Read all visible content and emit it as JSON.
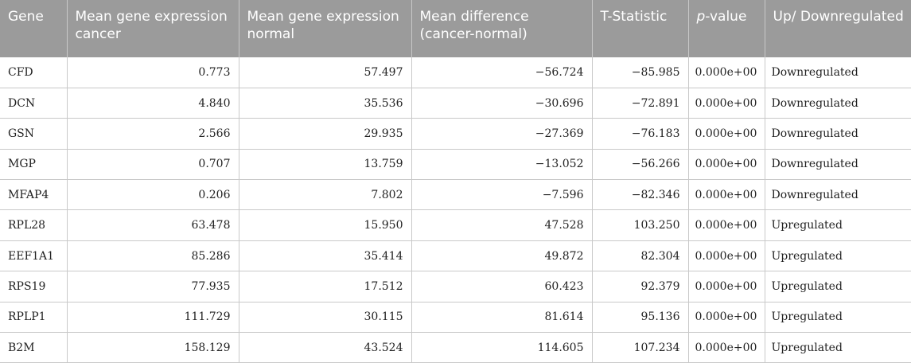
{
  "columns": {
    "gene": "Gene",
    "mean_cancer": "Mean gene expression cancer",
    "mean_normal": "Mean gene expression normal",
    "mean_diff": "Mean difference (cancer-normal)",
    "t_stat": "T-Statistic",
    "p_value_italic": "p",
    "p_value_rest": "-value",
    "regulation": "Up/ Downregulated"
  },
  "rows": [
    {
      "gene": "CFD",
      "cancer": "0.773",
      "normal": "57.497",
      "diff": "−56.724",
      "t": "−85.985",
      "p": "0.000e+00",
      "reg": "Downregulated"
    },
    {
      "gene": "DCN",
      "cancer": "4.840",
      "normal": "35.536",
      "diff": "−30.696",
      "t": "−72.891",
      "p": "0.000e+00",
      "reg": "Downregulated"
    },
    {
      "gene": "GSN",
      "cancer": "2.566",
      "normal": "29.935",
      "diff": "−27.369",
      "t": "−76.183",
      "p": "0.000e+00",
      "reg": "Downregulated"
    },
    {
      "gene": "MGP",
      "cancer": "0.707",
      "normal": "13.759",
      "diff": "−13.052",
      "t": "−56.266",
      "p": "0.000e+00",
      "reg": "Downregulated"
    },
    {
      "gene": "MFAP4",
      "cancer": "0.206",
      "normal": "7.802",
      "diff": "−7.596",
      "t": "−82.346",
      "p": "0.000e+00",
      "reg": "Downregulated"
    },
    {
      "gene": "RPL28",
      "cancer": "63.478",
      "normal": "15.950",
      "diff": "47.528",
      "t": "103.250",
      "p": "0.000e+00",
      "reg": "Upregulated"
    },
    {
      "gene": "EEF1A1",
      "cancer": "85.286",
      "normal": "35.414",
      "diff": "49.872",
      "t": "82.304",
      "p": "0.000e+00",
      "reg": "Upregulated"
    },
    {
      "gene": "RPS19",
      "cancer": "77.935",
      "normal": "17.512",
      "diff": "60.423",
      "t": "92.379",
      "p": "0.000e+00",
      "reg": "Upregulated"
    },
    {
      "gene": "RPLP1",
      "cancer": "111.729",
      "normal": "30.115",
      "diff": "81.614",
      "t": "95.136",
      "p": "0.000e+00",
      "reg": "Upregulated"
    },
    {
      "gene": "B2M",
      "cancer": "158.129",
      "normal": "43.524",
      "diff": "114.605",
      "t": "107.234",
      "p": "0.000e+00",
      "reg": "Upregulated"
    }
  ],
  "colors": {
    "header_bg": "#9b9b9b",
    "header_text": "#ffffff",
    "grid": "#c9c9c9"
  }
}
